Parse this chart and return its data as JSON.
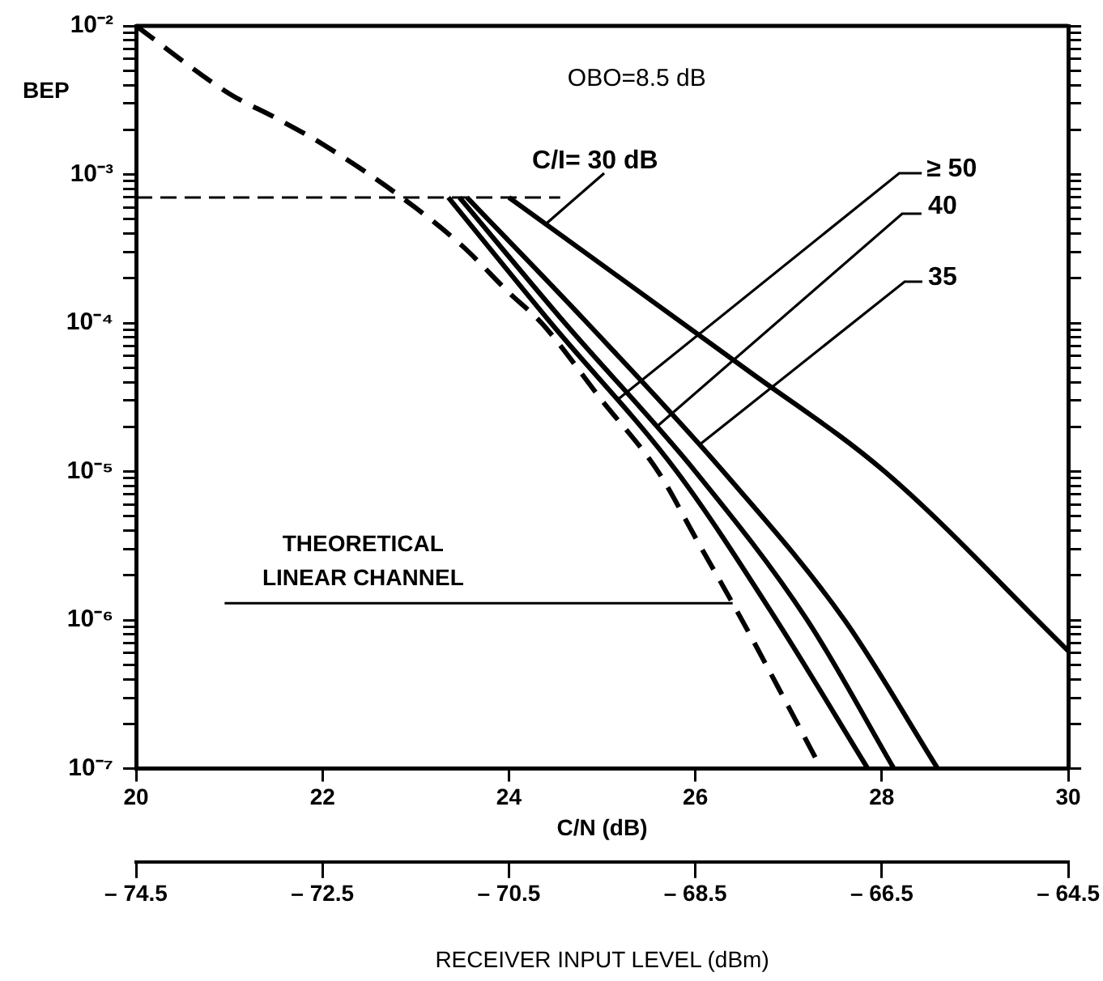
{
  "chart_data": {
    "type": "line",
    "ylabel": "BEP",
    "xlabel": "C/N (dB)",
    "x2label": "RECEIVER INPUT LEVEL (dBm)",
    "annotations": [
      "OBO=8.5 dB",
      "THEORETICAL LINEAR CHANNEL",
      {
        "text": "≥ 50",
        "x": 25.16,
        "y": 3e-05
      },
      {
        "text": "40",
        "x": 25.58,
        "y": 2e-05
      },
      {
        "text": "35",
        "x": 26.04,
        "y": 1.5e-05
      },
      {
        "text": "C/I= 30 dB",
        "x": 24.4,
        "y": 0.00046
      }
    ],
    "log": "y",
    "grid": false,
    "legend": false,
    "marker": "none",
    "xlim": [
      20,
      30
    ],
    "xticks": [
      20,
      22,
      24,
      26,
      28,
      30
    ],
    "x2lim": [
      -74.5,
      -64.5
    ],
    "x2ticks": [
      {
        "value": -74.5,
        "label": "– 74.5"
      },
      {
        "value": -72.5,
        "label": "– 72.5"
      },
      {
        "value": -70.5,
        "label": "– 70.5"
      },
      {
        "value": -68.5,
        "label": "– 68.5"
      },
      {
        "value": -66.5,
        "label": "– 66.5"
      },
      {
        "value": -64.5,
        "label": "– 64.5"
      }
    ],
    "ylim": [
      1e-07,
      0.01
    ],
    "yticks": [
      {
        "value": 1e-07,
        "label": "10⁻⁷"
      },
      {
        "value": 2e-07,
        "label": null
      },
      {
        "value": 3e-07,
        "label": null
      },
      {
        "value": 4e-07,
        "label": null
      },
      {
        "value": 5e-07,
        "label": null
      },
      {
        "value": 6e-07,
        "label": null
      },
      {
        "value": 7e-07,
        "label": null
      },
      {
        "value": 8e-07,
        "label": null
      },
      {
        "value": 9e-07,
        "label": null
      },
      {
        "value": 1e-06,
        "label": "10⁻⁶"
      },
      {
        "value": 2e-06,
        "label": null
      },
      {
        "value": 3e-06,
        "label": null
      },
      {
        "value": 4e-06,
        "label": null
      },
      {
        "value": 5e-06,
        "label": null
      },
      {
        "value": 6e-06,
        "label": null
      },
      {
        "value": 7e-06,
        "label": null
      },
      {
        "value": 8e-06,
        "label": null
      },
      {
        "value": 9e-06,
        "label": null
      },
      {
        "value": 1e-05,
        "label": "10⁻⁵"
      },
      {
        "value": 2e-05,
        "label": null
      },
      {
        "value": 3e-05,
        "label": null
      },
      {
        "value": 4e-05,
        "label": null
      },
      {
        "value": 5e-05,
        "label": null
      },
      {
        "value": 6e-05,
        "label": null
      },
      {
        "value": 7e-05,
        "label": null
      },
      {
        "value": 8e-05,
        "label": null
      },
      {
        "value": 9e-05,
        "label": null
      },
      {
        "value": 0.0001,
        "label": "10⁻⁴"
      },
      {
        "value": 0.0002,
        "label": null
      },
      {
        "value": 0.0003,
        "label": null
      },
      {
        "value": 0.0004,
        "label": null
      },
      {
        "value": 0.0005,
        "label": null
      },
      {
        "value": 0.0006,
        "label": null
      },
      {
        "value": 0.0007,
        "label": null
      },
      {
        "value": 0.0008,
        "label": null
      },
      {
        "value": 0.0009,
        "label": null
      },
      {
        "value": 0.001,
        "label": "10⁻³"
      },
      {
        "value": 0.002,
        "label": null
      },
      {
        "value": 0.003,
        "label": null
      },
      {
        "value": 0.004,
        "label": null
      },
      {
        "value": 0.005,
        "label": null
      },
      {
        "value": 0.006,
        "label": null
      },
      {
        "value": 0.007,
        "label": null
      },
      {
        "value": 0.008,
        "label": null
      },
      {
        "value": 0.009,
        "label": null
      },
      {
        "value": 0.01,
        "label": "10⁻²"
      }
    ],
    "series": [
      {
        "color": "#000000",
        "line_style": "dashed",
        "x": [
          20,
          21,
          21.5,
          22,
          22.85,
          23.5,
          24,
          24.35,
          25,
          25.6,
          26,
          26.5,
          27,
          27.35
        ],
        "values": [
          0.01,
          0.0035,
          0.0024,
          0.0016,
          0.0007,
          0.00033,
          0.00016,
          0.0001,
          3e-05,
          1e-05,
          3.6e-06,
          1e-06,
          2.6e-07,
          1e-07
        ]
      },
      {
        "color": "#000000",
        "line_style": "solid",
        "x": [
          23.35,
          24.45,
          25.8,
          26.87,
          27.85
        ],
        "values": [
          0.0007,
          0.0001,
          1e-05,
          1e-06,
          1e-07
        ]
      },
      {
        "color": "#000000",
        "line_style": "solid",
        "x": [
          23.47,
          24.6,
          26.0,
          27.2,
          28.13
        ],
        "values": [
          0.0007,
          0.0001,
          1e-05,
          1e-06,
          1e-07
        ]
      },
      {
        "color": "#000000",
        "line_style": "solid",
        "x": [
          23.55,
          24.84,
          26.3,
          27.6,
          28.6
        ],
        "values": [
          0.0007,
          0.0001,
          1e-05,
          1e-06,
          1e-07
        ]
      },
      {
        "color": "#000000",
        "line_style": "solid",
        "x": [
          24.0,
          26.56,
          28.03,
          30
        ],
        "values": [
          0.0007,
          4.8e-05,
          1e-05,
          6.2e-07
        ]
      },
      {
        "color": "#000000",
        "line_style": "dashed",
        "x": [
          20,
          24.55
        ],
        "values": [
          0.0007,
          0.0007
        ]
      },
      {
        "color": "#000000",
        "line_style": "solid",
        "x": [
          20.95,
          26.4
        ],
        "values": [
          1.3e-06,
          1.3e-06
        ]
      }
    ]
  }
}
